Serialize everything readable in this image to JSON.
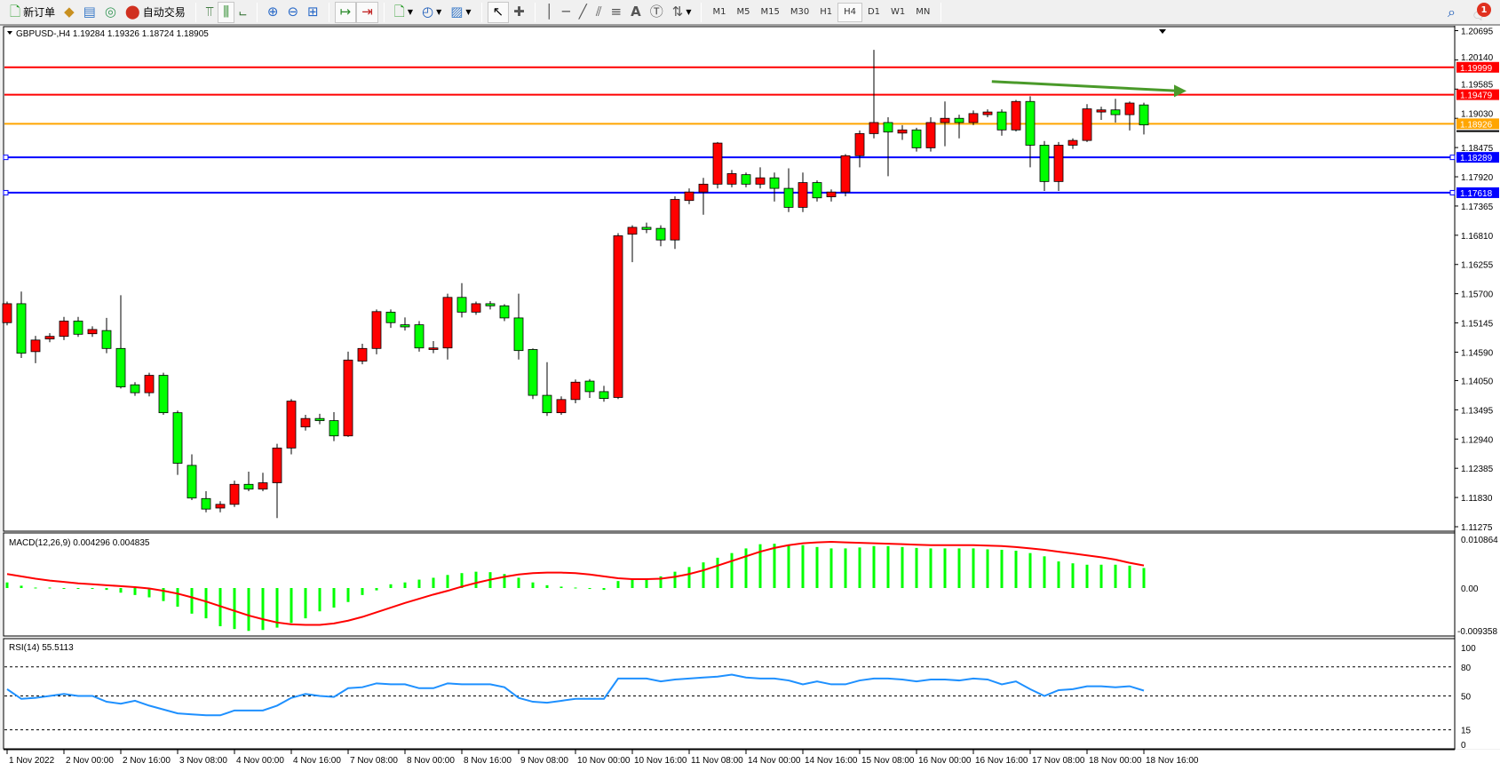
{
  "toolbar": {
    "new_order": "新订单",
    "auto_trading": "自动交易",
    "icons": [
      "new-order-icon",
      "market-watch-icon",
      "data-window-icon",
      "signals-icon",
      "auto-trading-icon",
      "bar-chart-icon",
      "candlestick-icon",
      "line-chart-icon",
      "zoom-in-icon",
      "zoom-out-icon",
      "tile-windows-icon",
      "autoscroll-icon",
      "chart-shift-icon",
      "new-chart-icon",
      "periods-icon",
      "templates-icon",
      "cursor-icon",
      "crosshair-icon",
      "vertical-line-icon",
      "horizontal-line-icon",
      "trendline-icon",
      "equidistant-channel-icon",
      "fibonacci-icon",
      "text-icon",
      "text-label-icon",
      "arrows-icon"
    ],
    "timeframes": [
      "M1",
      "M5",
      "M15",
      "M30",
      "H1",
      "H4",
      "D1",
      "W1",
      "MN"
    ],
    "active_timeframe": "H4",
    "notification_count": "1"
  },
  "chart": {
    "header": "GBPUSD-,H4  1.19284 1.19326 1.18724 1.18905",
    "symbol": "GBPUSD-",
    "timeframe": "H4",
    "ohlc": {
      "open": 1.19284,
      "high": 1.19326,
      "low": 1.18724,
      "close": 1.18905
    },
    "colors": {
      "bull": "#ff0000",
      "bear": "#00ff00",
      "wick": "#000000",
      "background": "#ffffff"
    }
  },
  "chart_data": [
    {
      "type": "candlestick",
      "price_axis": [
        "1.20695",
        "1.20140",
        "1.19585",
        "1.19030",
        "1.18475",
        "1.17920",
        "1.17365",
        "1.16810",
        "1.16255",
        "1.15700",
        "1.15145",
        "1.14590",
        "1.14050",
        "1.13495",
        "1.12940",
        "1.12385",
        "1.11830",
        "1.11275"
      ],
      "ylim": [
        1.11275,
        1.20695
      ],
      "time_axis": [
        "1 Nov 2022",
        "2 Nov 00:00",
        "2 Nov 16:00",
        "3 Nov 08:00",
        "4 Nov 00:00",
        "4 Nov 16:00",
        "7 Nov 08:00",
        "8 Nov 00:00",
        "8 Nov 16:00",
        "9 Nov 08:00",
        "10 Nov 00:00",
        "10 Nov 16:00",
        "11 Nov 08:00",
        "14 Nov 00:00",
        "14 Nov 16:00",
        "15 Nov 08:00",
        "16 Nov 00:00",
        "16 Nov 16:00",
        "17 Nov 08:00",
        "18 Nov 00:00",
        "18 Nov 16:00"
      ],
      "ohlc": [
        [
          1.1515,
          1.1555,
          1.151,
          1.1551
        ],
        [
          1.1551,
          1.1574,
          1.1448,
          1.1457
        ],
        [
          1.146,
          1.149,
          1.1438,
          1.1482
        ],
        [
          1.1484,
          1.1495,
          1.1478,
          1.1489
        ],
        [
          1.1489,
          1.1526,
          1.1482,
          1.1518
        ],
        [
          1.1518,
          1.1526,
          1.1488,
          1.1493
        ],
        [
          1.1494,
          1.1508,
          1.1488,
          1.1502
        ],
        [
          1.15,
          1.1524,
          1.1457,
          1.1466
        ],
        [
          1.1466,
          1.1567,
          1.139,
          1.1393
        ],
        [
          1.1397,
          1.1402,
          1.1376,
          1.1382
        ],
        [
          1.1382,
          1.142,
          1.1375,
          1.1415
        ],
        [
          1.1415,
          1.142,
          1.134,
          1.1344
        ],
        [
          1.1344,
          1.1348,
          1.1226,
          1.1248
        ],
        [
          1.1244,
          1.1265,
          1.1178,
          1.1182
        ],
        [
          1.1181,
          1.1195,
          1.1155,
          1.1161
        ],
        [
          1.1163,
          1.1176,
          1.1155,
          1.117
        ],
        [
          1.117,
          1.1215,
          1.1165,
          1.1208
        ],
        [
          1.1208,
          1.1232,
          1.1195,
          1.1199
        ],
        [
          1.1199,
          1.123,
          1.1195,
          1.1211
        ],
        [
          1.1211,
          1.1285,
          1.1144,
          1.1277
        ],
        [
          1.1277,
          1.137,
          1.1265,
          1.1366
        ],
        [
          1.1317,
          1.134,
          1.131,
          1.1333
        ],
        [
          1.1333,
          1.1342,
          1.1322,
          1.1329
        ],
        [
          1.1329,
          1.1345,
          1.129,
          1.13
        ],
        [
          1.13,
          1.146,
          1.1298,
          1.1444
        ],
        [
          1.1442,
          1.1475,
          1.1436,
          1.1466
        ],
        [
          1.1466,
          1.154,
          1.1455,
          1.1536
        ],
        [
          1.1535,
          1.154,
          1.1505,
          1.1515
        ],
        [
          1.1511,
          1.1525,
          1.15,
          1.1507
        ],
        [
          1.1511,
          1.1518,
          1.146,
          1.1467
        ],
        [
          1.1464,
          1.148,
          1.1457,
          1.1467
        ],
        [
          1.1467,
          1.157,
          1.1445,
          1.1563
        ],
        [
          1.1563,
          1.159,
          1.1525,
          1.1535
        ],
        [
          1.1535,
          1.1555,
          1.153,
          1.1551
        ],
        [
          1.1551,
          1.1556,
          1.154,
          1.1547
        ],
        [
          1.1547,
          1.155,
          1.1518,
          1.1524
        ],
        [
          1.1524,
          1.157,
          1.1445,
          1.1462
        ],
        [
          1.1464,
          1.1466,
          1.137,
          1.1377
        ],
        [
          1.1377,
          1.144,
          1.1338,
          1.1344
        ],
        [
          1.1344,
          1.1375,
          1.134,
          1.1369
        ],
        [
          1.1369,
          1.1407,
          1.1362,
          1.1402
        ],
        [
          1.1404,
          1.1408,
          1.1372,
          1.1384
        ],
        [
          1.1384,
          1.1395,
          1.1365,
          1.1371
        ],
        [
          1.1373,
          1.1685,
          1.137,
          1.168
        ],
        [
          1.1683,
          1.17,
          1.163,
          1.1696
        ],
        [
          1.1696,
          1.1705,
          1.1685,
          1.1692
        ],
        [
          1.1694,
          1.17,
          1.166,
          1.1672
        ],
        [
          1.1672,
          1.1755,
          1.1655,
          1.1749
        ],
        [
          1.1747,
          1.177,
          1.174,
          1.1763
        ],
        [
          1.1763,
          1.179,
          1.172,
          1.1778
        ],
        [
          1.1778,
          1.1858,
          1.177,
          1.1856
        ],
        [
          1.1778,
          1.1805,
          1.1772,
          1.1798
        ],
        [
          1.1796,
          1.18,
          1.1772,
          1.1778
        ],
        [
          1.1778,
          1.181,
          1.177,
          1.179
        ],
        [
          1.179,
          1.18,
          1.1745,
          1.177
        ],
        [
          1.177,
          1.1808,
          1.1725,
          1.1734
        ],
        [
          1.1734,
          1.18,
          1.1725,
          1.1781
        ],
        [
          1.1781,
          1.1785,
          1.1745,
          1.1752
        ],
        [
          1.1754,
          1.1768,
          1.1745,
          1.1763
        ],
        [
          1.1763,
          1.1835,
          1.1755,
          1.1832
        ],
        [
          1.1832,
          1.188,
          1.181,
          1.1874
        ],
        [
          1.1874,
          1.2033,
          1.1865,
          1.1895
        ],
        [
          1.1895,
          1.1905,
          1.1793,
          1.1877
        ],
        [
          1.1875,
          1.189,
          1.1862,
          1.1881
        ],
        [
          1.1881,
          1.1885,
          1.184,
          1.1847
        ],
        [
          1.1847,
          1.1905,
          1.184,
          1.1895
        ],
        [
          1.1895,
          1.1935,
          1.185,
          1.1903
        ],
        [
          1.1903,
          1.191,
          1.1865,
          1.1895
        ],
        [
          1.1895,
          1.1918,
          1.189,
          1.1912
        ],
        [
          1.191,
          1.192,
          1.1905,
          1.1915
        ],
        [
          1.1915,
          1.192,
          1.187,
          1.1881
        ],
        [
          1.1881,
          1.1938,
          1.1878,
          1.1935
        ],
        [
          1.1935,
          1.1945,
          1.181,
          1.1852
        ],
        [
          1.1852,
          1.186,
          1.1765,
          1.1783
        ],
        [
          1.1783,
          1.1858,
          1.1765,
          1.1852
        ],
        [
          1.1852,
          1.1865,
          1.1845,
          1.1861
        ],
        [
          1.1861,
          1.193,
          1.1858,
          1.1921
        ],
        [
          1.1915,
          1.1925,
          1.19,
          1.1919
        ],
        [
          1.1919,
          1.194,
          1.1895,
          1.191
        ],
        [
          1.191,
          1.1935,
          1.188,
          1.1932
        ],
        [
          1.19284,
          1.19326,
          1.18724,
          1.18905
        ]
      ],
      "horizontal_lines": [
        {
          "price": "1.19999",
          "color": "#ff0000"
        },
        {
          "price": "1.19479",
          "color": "#ff0000"
        },
        {
          "price": "1.18926",
          "color": "#ffa500"
        },
        {
          "price": "1.18289",
          "color": "#0000ff"
        },
        {
          "price": "1.17618",
          "color": "#0000ff"
        }
      ],
      "bid_price": 1.18905,
      "trendline": {
        "color": "#4a9a2a",
        "from_price": 1.1973,
        "to_price": 1.1955
      }
    },
    {
      "type": "bar+line",
      "label": "MACD(12,26,9) 0.004296 0.004835",
      "axis": [
        "0.010864",
        "0.00",
        "-0.009358"
      ],
      "ylim": [
        -0.009358,
        0.010864
      ],
      "histogram_color": "#00ff00",
      "signal_color": "#ff0000",
      "histogram": [
        0.0012,
        0.0005,
        0.0001,
        0.0001,
        0,
        0,
        0,
        -0.0004,
        -0.001,
        -0.0015,
        -0.002,
        -0.0028,
        -0.004,
        -0.0055,
        -0.0065,
        -0.0082,
        -0.0088,
        -0.0092,
        -0.009,
        -0.0085,
        -0.0075,
        -0.0065,
        -0.005,
        -0.0042,
        -0.003,
        -0.0015,
        -0.0005,
        0.0008,
        0.0012,
        0.0018,
        0.0022,
        0.0028,
        0.0032,
        0.0035,
        0.0034,
        0.003,
        0.0022,
        0.0012,
        0.0006,
        0.0003,
        0.0001,
        -0.0002,
        -0.0004,
        0.0015,
        0.002,
        0.002,
        0.0025,
        0.0035,
        0.0045,
        0.0055,
        0.0065,
        0.0075,
        0.0085,
        0.0094,
        0.0095,
        0.0093,
        0.0092,
        0.0088,
        0.0085,
        0.0085,
        0.0087,
        0.009,
        0.009,
        0.0088,
        0.0086,
        0.0085,
        0.0085,
        0.0085,
        0.0085,
        0.0083,
        0.0082,
        0.008,
        0.0075,
        0.0068,
        0.0057,
        0.0053,
        0.005,
        0.005,
        0.005,
        0.0048,
        0.004296
      ],
      "signal": [
        0.003,
        0.0025,
        0.002,
        0.0016,
        0.0013,
        0.001,
        0.0008,
        0.0006,
        0.0004,
        0.0002,
        -0.0001,
        -0.0006,
        -0.0012,
        -0.002,
        -0.0029,
        -0.0039,
        -0.0049,
        -0.0059,
        -0.0067,
        -0.0074,
        -0.0078,
        -0.0079,
        -0.0079,
        -0.0076,
        -0.007,
        -0.0062,
        -0.0052,
        -0.0042,
        -0.0032,
        -0.0023,
        -0.0014,
        -0.0006,
        0.0003,
        0.0011,
        0.0018,
        0.0024,
        0.0029,
        0.0032,
        0.0033,
        0.0033,
        0.0032,
        0.0029,
        0.0025,
        0.0021,
        0.0019,
        0.0019,
        0.002,
        0.0024,
        0.003,
        0.0038,
        0.0048,
        0.0058,
        0.0068,
        0.0078,
        0.0086,
        0.0092,
        0.0096,
        0.0098,
        0.0099,
        0.0098,
        0.0097,
        0.0096,
        0.0095,
        0.0094,
        0.0093,
        0.0092,
        0.0092,
        0.0092,
        0.0092,
        0.0091,
        0.009,
        0.0088,
        0.0085,
        0.0082,
        0.0078,
        0.0074,
        0.007,
        0.0066,
        0.0061,
        0.0054,
        0.004835
      ]
    },
    {
      "type": "line",
      "label": "RSI(14) 55.5113",
      "axis": [
        "100",
        "80",
        "50",
        "15",
        "0"
      ],
      "levels": [
        80,
        50,
        15
      ],
      "ylim": [
        0,
        100
      ],
      "color": "#1e90ff",
      "values": [
        57,
        47,
        48,
        50,
        52,
        50,
        50,
        44,
        42,
        45,
        40,
        36,
        32,
        31,
        30,
        30,
        35,
        35,
        35,
        40,
        48,
        52,
        50,
        49,
        58,
        59,
        63,
        62,
        62,
        58,
        58,
        63,
        62,
        62,
        62,
        59,
        48,
        44,
        43,
        45,
        47,
        47,
        47,
        68,
        68,
        68,
        65,
        67,
        68,
        69,
        70,
        72,
        69,
        68,
        68,
        66,
        62,
        65,
        62,
        62,
        66,
        68,
        68,
        67,
        65,
        67,
        67,
        66,
        68,
        67,
        62,
        65,
        57,
        50,
        56,
        57,
        60,
        60,
        59,
        60,
        55.5113
      ]
    }
  ]
}
